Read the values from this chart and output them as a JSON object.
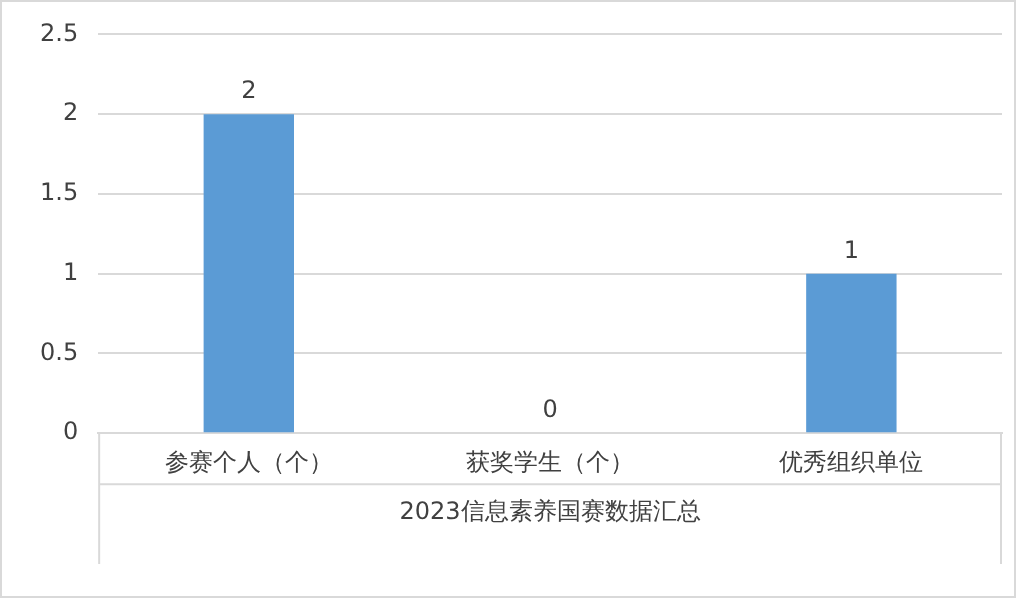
{
  "chart_data": {
    "type": "bar",
    "xlabel": "2023信息素养国赛数据汇总",
    "categories": [
      "参赛个人（个）",
      "获奖学生（个）",
      "优秀组织单位"
    ],
    "values": [
      2,
      0,
      1
    ],
    "color": "#5b9bd5",
    "ylim": [
      0,
      2.5
    ],
    "yticks": [
      0,
      0.5,
      1,
      1.5,
      2,
      2.5
    ],
    "grid": "y",
    "data_labels": true
  }
}
